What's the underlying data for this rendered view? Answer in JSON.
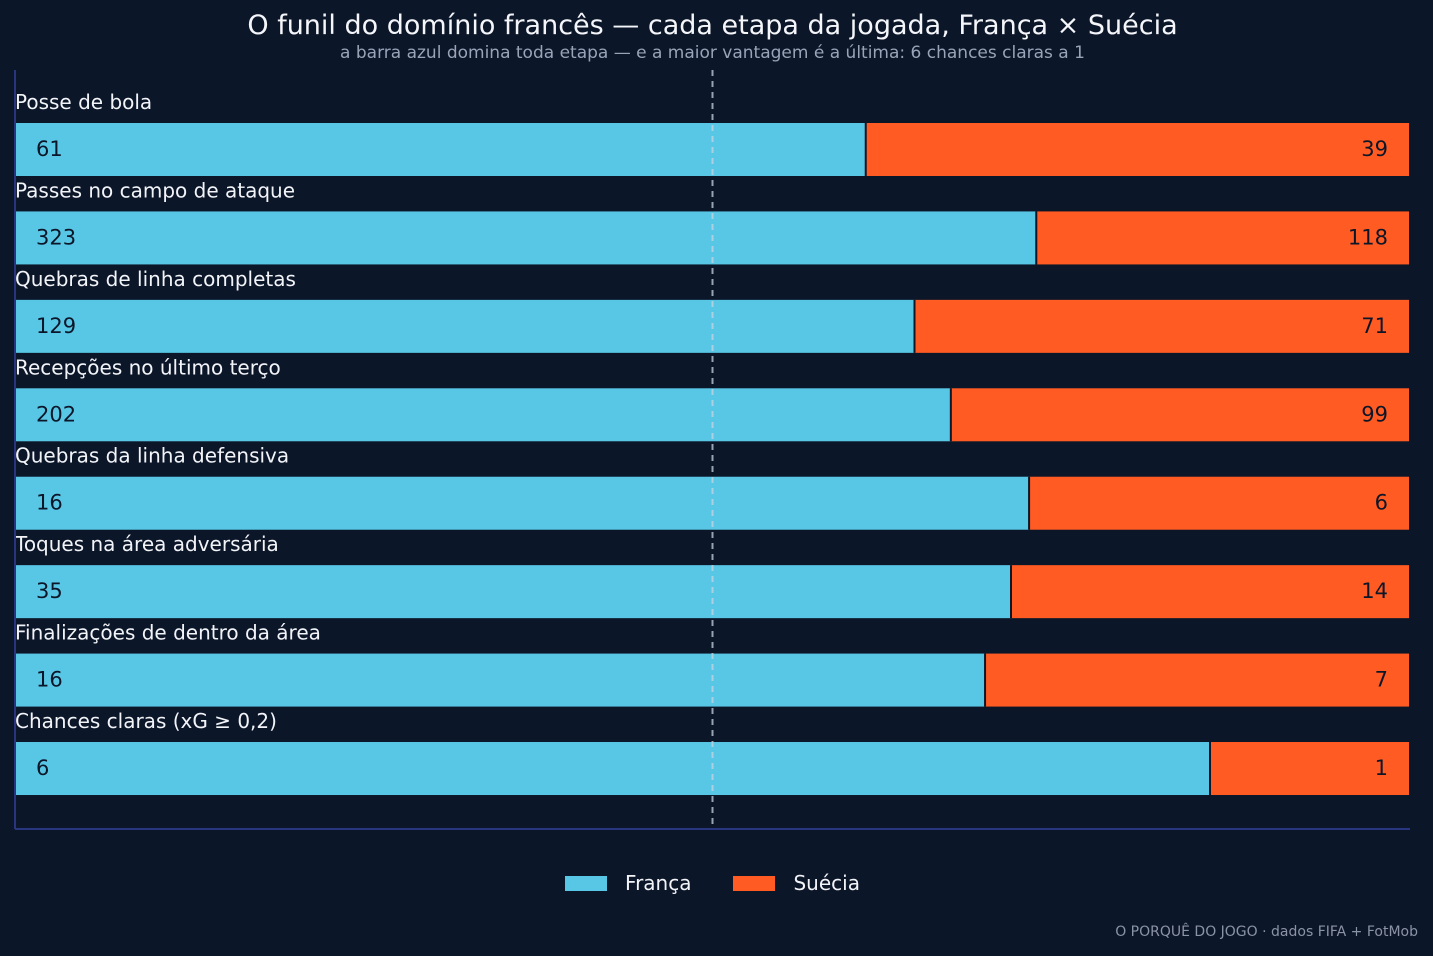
{
  "title": "O funil do domínio francês — cada etapa da jogada, França × Suécia",
  "subtitle": "a barra azul domina toda etapa — e a maior vantagem é a última: 6 chances claras a 1",
  "credit": "O PORQUÊ DO JOGO · dados FIFA + FotMob",
  "colors": {
    "background": "#0c1629",
    "franca": "#58c7e5",
    "suecia": "#ff5b22",
    "axis": "#2a3580",
    "reference_line": "#c9d2e0"
  },
  "legend": [
    {
      "label": "França",
      "color": "#58c7e5"
    },
    {
      "label": "Suécia",
      "color": "#ff5b22"
    }
  ],
  "chart_data": {
    "type": "bar",
    "orientation": "horizontal-stacked-100",
    "categories": [
      "Posse de bola",
      "Passes no campo de ataque",
      "Quebras de linha completas",
      "Recepções no último terço",
      "Quebras da linha defensiva",
      "Toques na área adversária",
      "Finalizações de dentro da área",
      "Chances claras (xG ≥ 0,2)"
    ],
    "series": [
      {
        "name": "França",
        "values": [
          61,
          323,
          129,
          202,
          16,
          35,
          16,
          6
        ]
      },
      {
        "name": "Suécia",
        "values": [
          39,
          118,
          71,
          99,
          6,
          14,
          7,
          1
        ]
      }
    ],
    "reference_line": 0.5,
    "legend_position": "bottom-center"
  }
}
